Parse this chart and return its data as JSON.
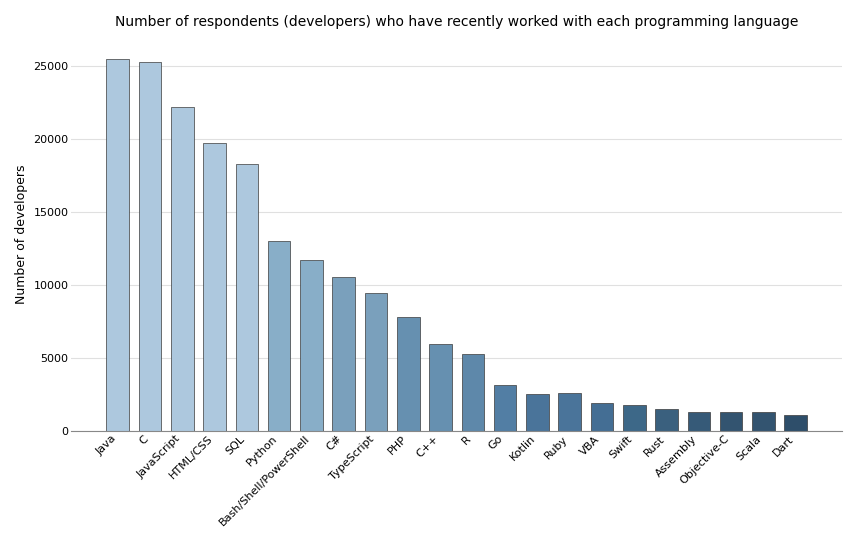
{
  "title": "Number of respondents (developers) who have recently worked with each programming language",
  "ylabel": "Number of developers",
  "categories": [
    "Java",
    "C",
    "JavaScript",
    "HTML/CSS",
    "SQL",
    "Python",
    "Bash/Shell/PowerShell",
    "C#",
    "TypeScript",
    "PHP",
    "C++",
    "R",
    "Go",
    "Kotlin",
    "Ruby",
    "VBA",
    "Swift",
    "Rust",
    "Assembly",
    "Objective-C",
    "Scala",
    "Dart"
  ],
  "values": [
    25467,
    25300,
    22200,
    19750,
    18300,
    13050,
    11700,
    10550,
    9450,
    7800,
    5950,
    5250,
    3150,
    2550,
    2600,
    1900,
    1750,
    1500,
    1300,
    1300,
    1300,
    1100
  ],
  "bar_colors": [
    "#adc8de",
    "#adc8de",
    "#adc8de",
    "#adc8de",
    "#adc8de",
    "#88aec8",
    "#88aec8",
    "#7aa0bc",
    "#7aa0bc",
    "#6690b0",
    "#6690b0",
    "#5e88aa",
    "#527ea4",
    "#4a749a",
    "#4a749a",
    "#446e94",
    "#3d6888",
    "#3a607e",
    "#365a78",
    "#335470",
    "#335470",
    "#2e4e6a"
  ],
  "background_color": "#ffffff",
  "plot_bg_color": "#ffffff",
  "grid_color": "#e0e0e0",
  "ylim": [
    0,
    27000
  ],
  "yticks": [
    0,
    5000,
    10000,
    15000,
    20000,
    25000
  ],
  "title_fontsize": 10,
  "label_fontsize": 9,
  "tick_fontsize": 8,
  "bar_edge_color": "#3a3a3a",
  "bar_edge_width": 0.5
}
